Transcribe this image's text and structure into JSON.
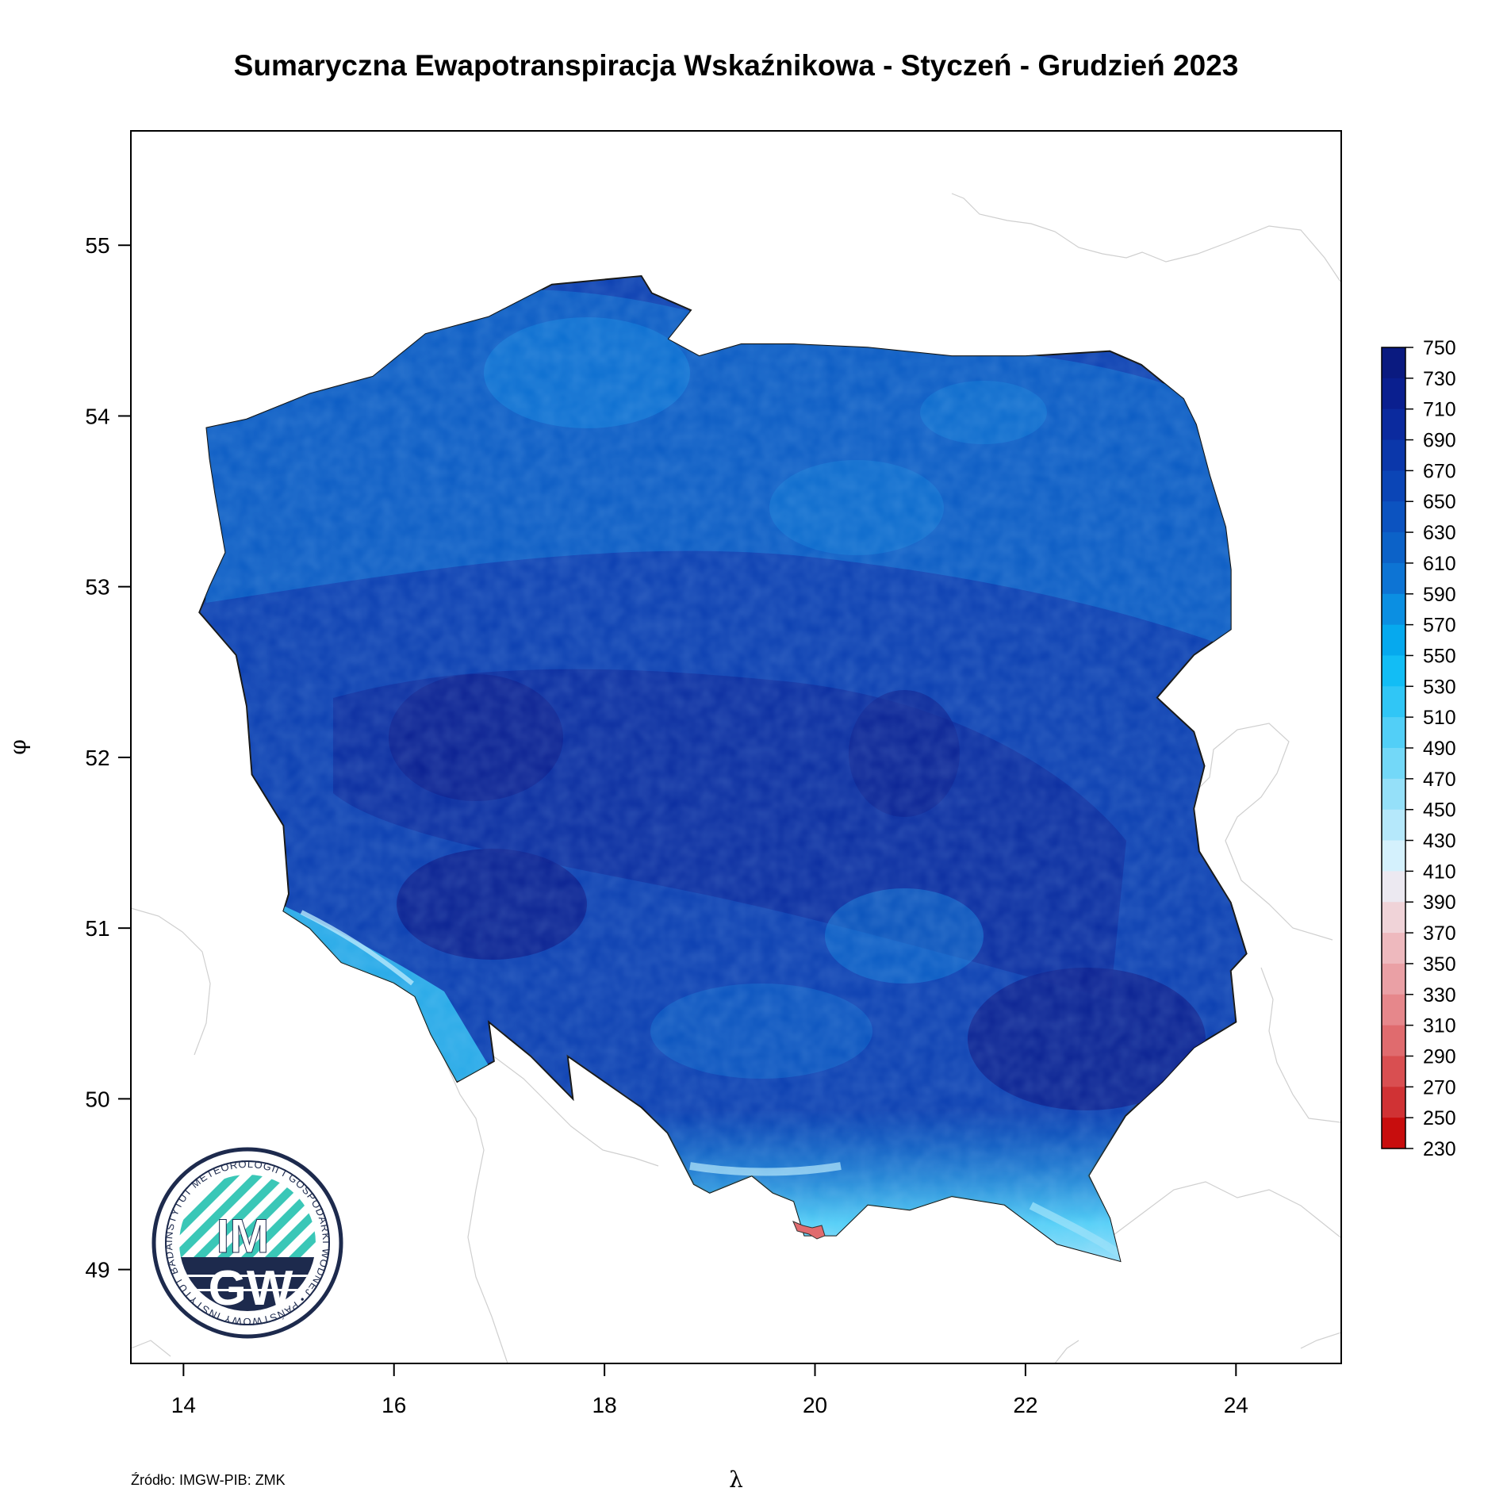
{
  "map": {
    "title": "Sumaryczna Ewapotranspiracja Wskaźnikowa - Styczeń - Grudzień 2023",
    "x_axis_label": "λ",
    "y_axis_label": "φ",
    "x_ticks": [
      14,
      16,
      18,
      20,
      22,
      24
    ],
    "y_ticks": [
      49,
      50,
      51,
      52,
      53,
      54,
      55
    ],
    "x_range": [
      13.5,
      25.0
    ],
    "y_range": [
      48.45,
      55.67
    ],
    "source": "Źródło: IMGW-PIB: ZMK"
  },
  "legend": {
    "breaks": [
      750,
      730,
      710,
      690,
      670,
      650,
      630,
      610,
      590,
      570,
      550,
      530,
      510,
      490,
      470,
      450,
      430,
      410,
      390,
      370,
      350,
      330,
      310,
      290,
      270,
      250,
      230
    ],
    "colors": [
      "#0a1a80",
      "#0a1f8f",
      "#0b2a9e",
      "#0b37aa",
      "#0b45b6",
      "#0c53c0",
      "#0c62c8",
      "#0d74d4",
      "#0b8fe2",
      "#06a9ee",
      "#12bdf5",
      "#30c6f6",
      "#52cff7",
      "#73d8f8",
      "#95e0f9",
      "#b5e8fb",
      "#d4f1fd",
      "#ece9f1",
      "#f0d3d8",
      "#eeb9be",
      "#eaa0a5",
      "#e6878b",
      "#e06b6e",
      "#d94f51",
      "#d03234",
      "#c80d0d"
    ]
  },
  "logo": {
    "initials_top": "IM",
    "initials_bottom": "GW",
    "ring_text": "INSTYTUT METEOROLOGII I GOSPODARKI WODNEJ • PAŃSTWOWY INSTYTUT BADAWCZY •"
  }
}
